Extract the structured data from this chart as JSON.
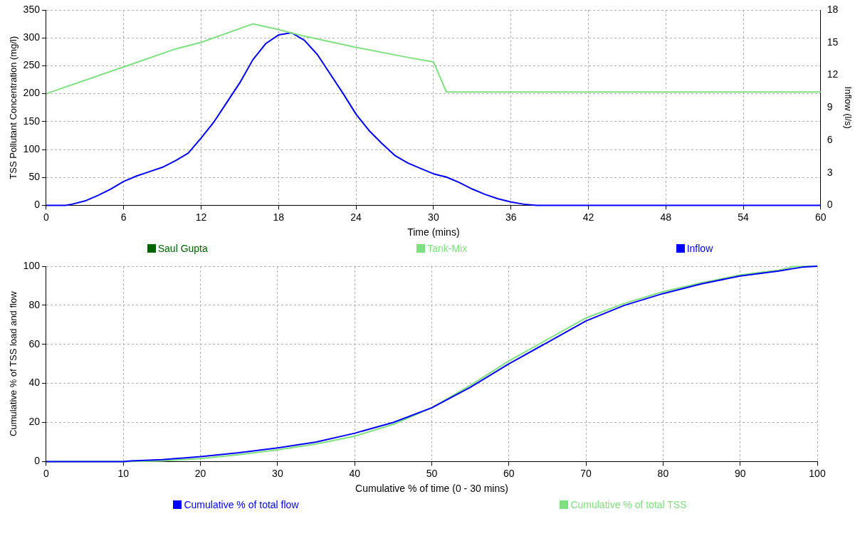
{
  "chart_data": [
    {
      "type": "line",
      "xlabel": "Time (mins)",
      "ylabel": "TSS Pollutant Concentration (mg/l)",
      "y2label": "Inflow (l/s)",
      "xlim": [
        0,
        60
      ],
      "xticks": [
        0,
        6,
        12,
        18,
        24,
        30,
        36,
        42,
        48,
        54,
        60
      ],
      "ylim": [
        0,
        350
      ],
      "yticks": [
        0,
        50,
        100,
        150,
        200,
        250,
        300,
        350
      ],
      "y2lim": [
        0,
        18
      ],
      "y2ticks": [
        0,
        3,
        6,
        9,
        12,
        15,
        18
      ],
      "grid": true,
      "legend": "bottom",
      "marker": "none",
      "line_style": "solid",
      "series": [
        {
          "name": "Saul Gupta",
          "color": "#006400"
        },
        {
          "name": "Tank-Mix",
          "color": "#80df80",
          "x": [
            0,
            6,
            10,
            12,
            16,
            18,
            20,
            24,
            28,
            30,
            31,
            60
          ],
          "values": [
            200,
            248,
            280,
            292,
            325,
            315,
            303,
            283,
            265,
            257,
            203,
            203
          ]
        },
        {
          "name": "Inflow",
          "color": "#0000ff",
          "axis": "y2",
          "x": [
            0,
            1.5,
            2,
            3,
            4,
            5,
            6,
            7,
            8,
            9,
            10,
            11,
            12,
            13,
            14,
            15,
            16,
            17,
            18,
            19,
            20,
            21,
            22,
            23,
            24,
            25,
            26,
            27,
            28,
            29,
            30,
            31,
            32,
            33,
            34,
            35,
            36,
            37,
            38,
            60
          ],
          "values": [
            0,
            0,
            0.1,
            0.4,
            0.9,
            1.5,
            2.2,
            2.7,
            3.1,
            3.5,
            4.1,
            4.8,
            6.2,
            7.7,
            9.5,
            11.3,
            13.4,
            14.9,
            15.7,
            15.9,
            15.2,
            13.9,
            12.1,
            10.3,
            8.4,
            6.9,
            5.7,
            4.6,
            3.9,
            3.4,
            2.9,
            2.6,
            2.1,
            1.5,
            1.0,
            0.6,
            0.3,
            0.1,
            0,
            0
          ]
        }
      ]
    },
    {
      "type": "line",
      "xlabel": "Cumulative % of time (0 - 30 mins)",
      "ylabel": "Cumulative % of TSS load and flow",
      "xlim": [
        0,
        100
      ],
      "xticks": [
        0,
        10,
        20,
        30,
        40,
        50,
        60,
        70,
        80,
        90,
        100
      ],
      "ylim": [
        0,
        100
      ],
      "yticks": [
        0,
        20,
        40,
        60,
        80,
        100
      ],
      "grid": true,
      "legend": "bottom",
      "marker": "none",
      "line_style": "solid",
      "series": [
        {
          "name": "Cumulative % of total flow",
          "color": "#0000ff",
          "x": [
            0,
            10,
            11,
            15,
            20,
            25,
            30,
            35,
            40,
            45,
            50,
            55,
            60,
            65,
            70,
            75,
            80,
            85,
            90,
            95,
            98,
            100
          ],
          "values": [
            0,
            0,
            0.3,
            1,
            2.5,
            4.5,
            7,
            10,
            14.5,
            20,
            27.5,
            38,
            50,
            61,
            72,
            80,
            86,
            91,
            95,
            97.5,
            99.5,
            100
          ]
        },
        {
          "name": "Cumulative % of total TSS",
          "color": "#80df80",
          "x": [
            0,
            10,
            15,
            20,
            25,
            30,
            35,
            40,
            45,
            50,
            55,
            60,
            65,
            70,
            75,
            80,
            85,
            90,
            95,
            97,
            100
          ],
          "values": [
            0,
            0,
            0.3,
            1.5,
            3.5,
            6,
            9,
            13,
            19,
            27.5,
            39,
            51.5,
            62.5,
            73.5,
            81,
            87,
            91.5,
            95.5,
            98,
            99.8,
            100
          ]
        }
      ]
    }
  ]
}
